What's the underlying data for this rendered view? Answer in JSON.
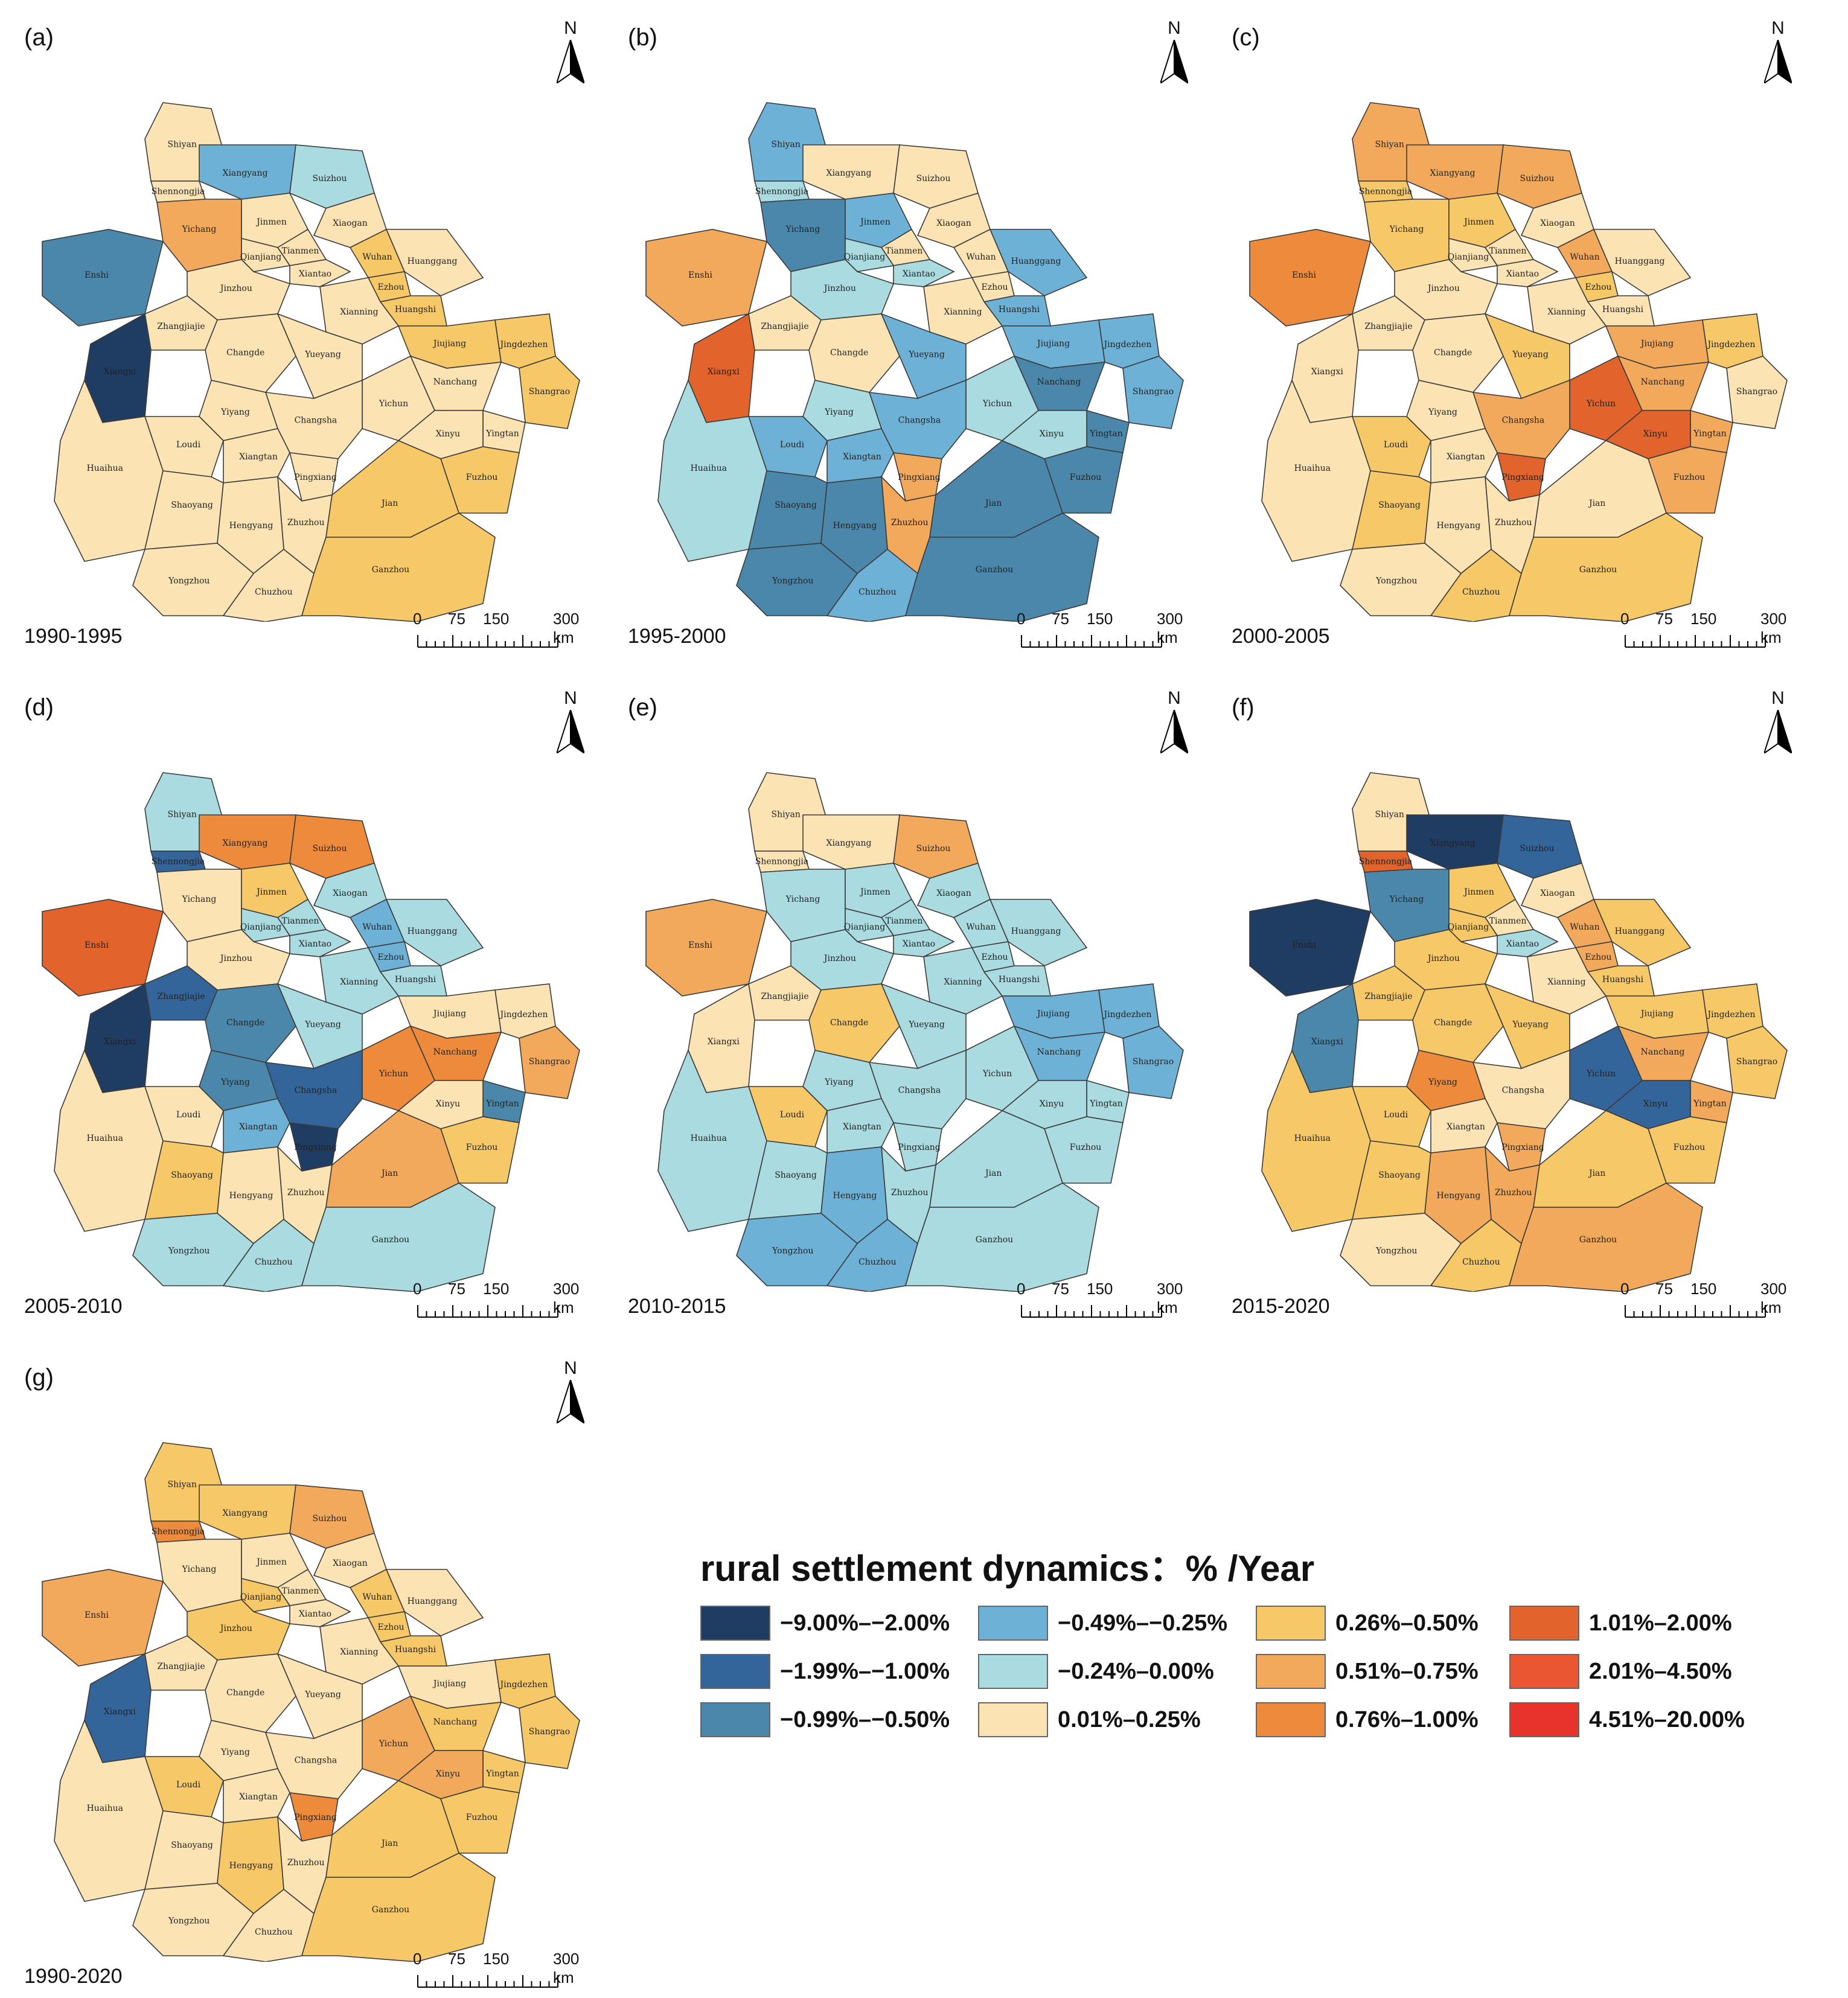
{
  "regions": [
    "Shiyan",
    "Xiangyang",
    "Suizhou",
    "Shennongjia",
    "Yichang",
    "Jinmen",
    "Xiaogan",
    "Tianmen",
    "Wuhan",
    "Huanggang",
    "Qianjiang",
    "Xiantao",
    "Ezhou",
    "Enshi",
    "Jinzhou",
    "Huangshi",
    "Xianning",
    "Zhangjiajie",
    "Changde",
    "Jiujiang",
    "Jingdezhen",
    "Xiangxi",
    "Yueyang",
    "Shangrao",
    "Nanchang",
    "Yiyang",
    "Yichun",
    "Changsha",
    "Yingtan",
    "Loudi",
    "Xinyu",
    "Huaihua",
    "Xiangtan",
    "Pingxiang",
    "Fuzhou",
    "Zhuzhou",
    "Shaoyang",
    "Hengyang",
    "Jian",
    "Yongzhou",
    "Chuzhou",
    "Ganzhou"
  ],
  "panels": [
    {
      "letter": "(a)",
      "period": "1990-1995",
      "classes": [
        5,
        3,
        4,
        5,
        7,
        5,
        5,
        5,
        6,
        5,
        5,
        5,
        6,
        2,
        5,
        6,
        5,
        5,
        5,
        6,
        6,
        0,
        5,
        6,
        5,
        5,
        5,
        5,
        5,
        5,
        5,
        5,
        5,
        5,
        6,
        5,
        5,
        5,
        6,
        5,
        5,
        6
      ]
    },
    {
      "letter": "(b)",
      "period": "1995-2000",
      "classes": [
        3,
        5,
        5,
        4,
        2,
        3,
        5,
        5,
        5,
        3,
        4,
        4,
        5,
        7,
        4,
        3,
        5,
        5,
        5,
        3,
        3,
        9,
        3,
        3,
        2,
        4,
        4,
        3,
        2,
        3,
        4,
        4,
        3,
        7,
        2,
        7,
        2,
        2,
        2,
        2,
        3,
        2
      ]
    },
    {
      "letter": "(c)",
      "period": "2000-2005",
      "classes": [
        7,
        7,
        7,
        6,
        6,
        6,
        5,
        5,
        7,
        5,
        5,
        5,
        6,
        8,
        5,
        5,
        5,
        5,
        5,
        7,
        6,
        5,
        6,
        5,
        7,
        5,
        9,
        7,
        7,
        6,
        9,
        5,
        5,
        9,
        7,
        5,
        6,
        5,
        5,
        5,
        6,
        6
      ]
    },
    {
      "letter": "(d)",
      "period": "2005-2010",
      "classes": [
        4,
        8,
        8,
        1,
        5,
        6,
        4,
        4,
        3,
        4,
        4,
        4,
        3,
        9,
        5,
        4,
        4,
        1,
        2,
        5,
        5,
        0,
        4,
        7,
        8,
        2,
        8,
        1,
        2,
        5,
        5,
        5,
        3,
        0,
        6,
        5,
        6,
        5,
        7,
        4,
        4,
        4
      ]
    },
    {
      "letter": "(e)",
      "period": "2010-2015",
      "classes": [
        5,
        5,
        7,
        5,
        4,
        4,
        4,
        4,
        4,
        4,
        4,
        4,
        4,
        7,
        4,
        4,
        4,
        5,
        6,
        3,
        3,
        5,
        4,
        3,
        3,
        4,
        4,
        4,
        4,
        6,
        4,
        4,
        4,
        4,
        4,
        4,
        4,
        3,
        4,
        3,
        3,
        4
      ]
    },
    {
      "letter": "(f)",
      "period": "2015-2020",
      "classes": [
        5,
        0,
        1,
        9,
        2,
        6,
        5,
        5,
        7,
        6,
        6,
        4,
        7,
        0,
        6,
        6,
        5,
        6,
        6,
        6,
        6,
        2,
        6,
        6,
        7,
        8,
        1,
        5,
        7,
        6,
        1,
        6,
        5,
        7,
        6,
        7,
        6,
        7,
        6,
        5,
        6,
        7
      ]
    },
    {
      "letter": "(g)",
      "period": "1990-2020",
      "classes": [
        6,
        6,
        7,
        8,
        5,
        5,
        5,
        5,
        6,
        5,
        6,
        5,
        6,
        7,
        6,
        6,
        5,
        5,
        5,
        5,
        6,
        1,
        5,
        6,
        6,
        5,
        7,
        5,
        6,
        6,
        7,
        5,
        5,
        8,
        6,
        5,
        5,
        6,
        6,
        5,
        5,
        6
      ]
    }
  ],
  "north_label": "N",
  "scale_ticks": [
    "0",
    "75",
    "150",
    "300 km"
  ],
  "legend": {
    "title": "rural settlement dynamics：% /Year",
    "items": [
      {
        "label": "−9.00%–−2.00%",
        "color": "#1f3c63"
      },
      {
        "label": "−1.99%–−1.00%",
        "color": "#34659a"
      },
      {
        "label": "−0.99%–−0.50%",
        "color": "#4b87ab"
      },
      {
        "label": "−0.49%–−0.25%",
        "color": "#6db2d6"
      },
      {
        "label": "−0.24%–0.00%",
        "color": "#a9dbe0"
      },
      {
        "label": "0.01%–0.25%",
        "color": "#fbe3b3"
      },
      {
        "label": "0.26%–0.50%",
        "color": "#f7c867"
      },
      {
        "label": "0.51%–0.75%",
        "color": "#f3a95b"
      },
      {
        "label": "0.76%–1.00%",
        "color": "#ee8a3c"
      },
      {
        "label": "1.01%–2.00%",
        "color": "#e2632b"
      },
      {
        "label": "2.01%–4.50%",
        "color": "#ea5631"
      },
      {
        "label": "4.51%–20.00%",
        "color": "#e8332d"
      }
    ]
  }
}
